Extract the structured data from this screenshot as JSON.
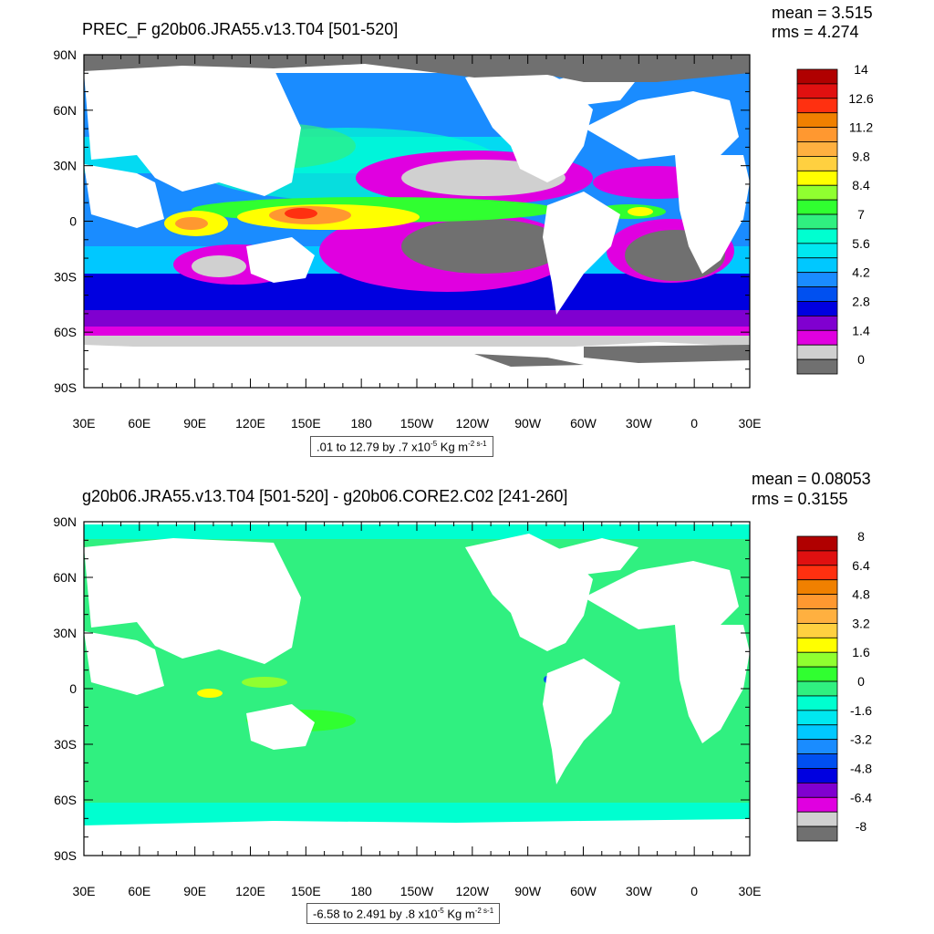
{
  "panels": [
    {
      "title": "PREC_F g20b06.JRA55.v13.T04 [501-520]",
      "mean": "mean = 3.515",
      "rms": "rms = 4.274",
      "range_prefix": ".01 to 12.79 by .7 x10",
      "range_exp": "-5",
      "range_units": " Kg m",
      "range_units_exp": "-2 s-1",
      "colorbar_labels": [
        "14",
        "12.6",
        "11.2",
        "9.8",
        "8.4",
        "7",
        "5.6",
        "4.2",
        "2.8",
        "1.4",
        "0"
      ],
      "colorbar_colors": [
        "#b00000",
        "#e01010",
        "#ff3010",
        "#f08000",
        "#ff9830",
        "#ffb040",
        "#ffd040",
        "#ffff00",
        "#90ff30",
        "#30ff30",
        "#30f080",
        "#00ffd0",
        "#00e8f0",
        "#00c8ff",
        "#1a8cff",
        "#0050f0",
        "#0000e0",
        "#8000d0",
        "#e000e0",
        "#d0d0d0",
        "#707070"
      ]
    },
    {
      "title": "g20b06.JRA55.v13.T04 [501-520] - g20b06.CORE2.C02 [241-260]",
      "mean": "mean = 0.08053",
      "rms": "rms = 0.3155",
      "range_prefix": "-6.58 to 2.491 by .8 x10",
      "range_exp": "-5",
      "range_units": " Kg m",
      "range_units_exp": "-2 s-1",
      "colorbar_labels": [
        "8",
        "6.4",
        "4.8",
        "3.2",
        "1.6",
        "0",
        "-1.6",
        "-3.2",
        "-4.8",
        "-6.4",
        "-8"
      ],
      "colorbar_colors": [
        "#b00000",
        "#e01010",
        "#ff3010",
        "#f08000",
        "#ff9830",
        "#ffb040",
        "#ffd040",
        "#ffff00",
        "#90ff30",
        "#30ff30",
        "#30f080",
        "#00ffd0",
        "#00e8f0",
        "#00c8ff",
        "#1a8cff",
        "#0050f0",
        "#0000e0",
        "#8000d0",
        "#e000e0",
        "#d0d0d0",
        "#707070"
      ]
    }
  ],
  "lat_labels": [
    "90N",
    "60N",
    "30N",
    "0",
    "30S",
    "60S",
    "90S"
  ],
  "lon_labels": [
    "30E",
    "60E",
    "90E",
    "120E",
    "150E",
    "180",
    "150W",
    "120W",
    "90W",
    "60W",
    "30W",
    "0",
    "30E"
  ]
}
